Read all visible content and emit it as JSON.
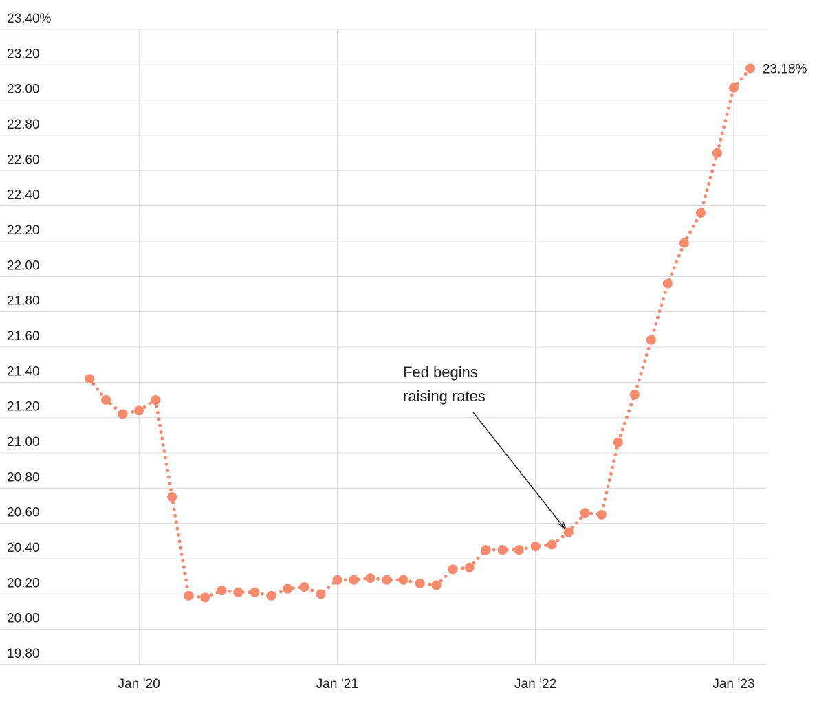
{
  "chart_data": {
    "type": "line",
    "x": [
      "2019-10",
      "2019-11",
      "2019-12",
      "2020-01",
      "2020-02",
      "2020-03",
      "2020-04",
      "2020-05",
      "2020-06",
      "2020-07",
      "2020-08",
      "2020-09",
      "2020-10",
      "2020-11",
      "2020-12",
      "2021-01",
      "2021-02",
      "2021-03",
      "2021-04",
      "2021-05",
      "2021-06",
      "2021-07",
      "2021-08",
      "2021-09",
      "2021-10",
      "2021-11",
      "2021-12",
      "2022-01",
      "2022-02",
      "2022-03",
      "2022-04",
      "2022-05",
      "2022-06",
      "2022-07",
      "2022-08",
      "2022-09",
      "2022-10",
      "2022-11",
      "2022-12",
      "2023-01",
      "2023-02"
    ],
    "values": [
      21.42,
      21.3,
      21.22,
      21.24,
      21.3,
      20.75,
      20.19,
      20.18,
      20.22,
      20.21,
      20.21,
      20.19,
      20.23,
      20.24,
      20.2,
      20.28,
      20.28,
      20.29,
      20.28,
      20.28,
      20.26,
      20.25,
      20.34,
      20.35,
      20.45,
      20.45,
      20.45,
      20.47,
      20.48,
      20.55,
      20.66,
      20.65,
      21.06,
      21.33,
      21.64,
      21.96,
      22.19,
      22.36,
      22.7,
      23.07,
      23.18
    ],
    "end_label": "23.18%",
    "color": "#f78a6c",
    "xlim": [
      "2019-05",
      "2023-03"
    ],
    "xticks": [
      {
        "value": "2020-01",
        "label": "Jan ’20"
      },
      {
        "value": "2021-01",
        "label": "Jan ’21"
      },
      {
        "value": "2022-01",
        "label": "Jan ’22"
      },
      {
        "value": "2023-01",
        "label": "Jan ’23"
      }
    ],
    "ylim": [
      19.8,
      23.4
    ],
    "yticks": [
      {
        "value": 23.4,
        "label": "23.40%"
      },
      {
        "value": 23.2,
        "label": "23.20"
      },
      {
        "value": 23.0,
        "label": "23.00"
      },
      {
        "value": 22.8,
        "label": "22.80"
      },
      {
        "value": 22.6,
        "label": "22.60"
      },
      {
        "value": 22.4,
        "label": "22.40"
      },
      {
        "value": 22.2,
        "label": "22.20"
      },
      {
        "value": 22.0,
        "label": "22.00"
      },
      {
        "value": 21.8,
        "label": "21.80"
      },
      {
        "value": 21.6,
        "label": "21.60"
      },
      {
        "value": 21.4,
        "label": "21.40"
      },
      {
        "value": 21.2,
        "label": "21.20"
      },
      {
        "value": 21.0,
        "label": "21.00"
      },
      {
        "value": 20.8,
        "label": "20.80"
      },
      {
        "value": 20.6,
        "label": "20.60"
      },
      {
        "value": 20.4,
        "label": "20.40"
      },
      {
        "value": 20.2,
        "label": "20.20"
      },
      {
        "value": 20.0,
        "label": "20.00"
      },
      {
        "value": 19.8,
        "label": "19.80"
      }
    ],
    "annotation": [
      "Fed begins",
      "raising rates"
    ],
    "grid": true
  }
}
